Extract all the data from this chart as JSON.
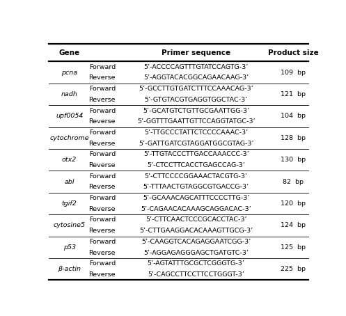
{
  "title_gene": "Gene",
  "title_primer": "Primer sequence",
  "title_size": "Product size",
  "rows": [
    {
      "gene": "pcna",
      "forward": "5’-ACCCCAGTTTGTATCCAGTG-3’",
      "reverse": "5’-AGGTACACGGCAGAACAAG-3’",
      "size": "109  bp"
    },
    {
      "gene": "nadh",
      "forward": "5’-GCCTTGTGATCTTTCCAAACAG-3’",
      "reverse": "5’-GTGTACGTGAGGTGGCTAC-3’",
      "size": "121  bp"
    },
    {
      "gene": "upf0054",
      "forward": "5’-GCATGTCTGTTGCGAATTGG-3’",
      "reverse": "5’-GGTTTGAATTGTTCCAGGTATGC-3’",
      "size": "104  bp"
    },
    {
      "gene": "cytochrome",
      "forward": "5’-TTGCCCTATTCTCCCCAAAC-3’",
      "reverse": "5’-GATTGATCGTAGGATGGCGTAG-3’",
      "size": "128  bp"
    },
    {
      "gene": "otx2",
      "forward": "5’-TTGTACCCTTGACCAAACCC-3’",
      "reverse": "5’-CTCCTTCACCTGAGCCAG-3’",
      "size": "130  bp"
    },
    {
      "gene": "abl",
      "forward": "5’-CTTCCCCGGAAACTACGTG-3’",
      "reverse": "5’-TTTAACTGTAGGCGTGACCG-3’",
      "size": "82  bp"
    },
    {
      "gene": "tgif2",
      "forward": "5’-GCAAACAGCATTTCCCCTTG-3’",
      "reverse": "5’-CAGAACACAAAGCAGGACAC-3’",
      "size": "120  bp"
    },
    {
      "gene": "cytosine5",
      "forward": "5’-CTTCAACTCCCGCACCTAC-3’",
      "reverse": "5’-CTTGAAGGACACAAAGTTGCG-3’",
      "size": "124  bp"
    },
    {
      "gene": "p53",
      "forward": "5’-CAAGGTCACAGAGGAATCGG-3’",
      "reverse": "5’-AGGAGAGGGAGCTGATGTC-3’",
      "size": "125  bp"
    },
    {
      "gene": "b-actin",
      "forward": "5’-AGTATTTGCGCTCGGGTG-3’",
      "reverse": "5’-CAGCCTTCCTTCCTGGGT-3’",
      "size": "225  bp"
    }
  ],
  "background": "#ffffff",
  "text_color": "#000000",
  "header_fontsize": 7.5,
  "cell_fontsize": 6.8,
  "gene_fontsize": 6.8,
  "seq_fontsize": 6.8
}
